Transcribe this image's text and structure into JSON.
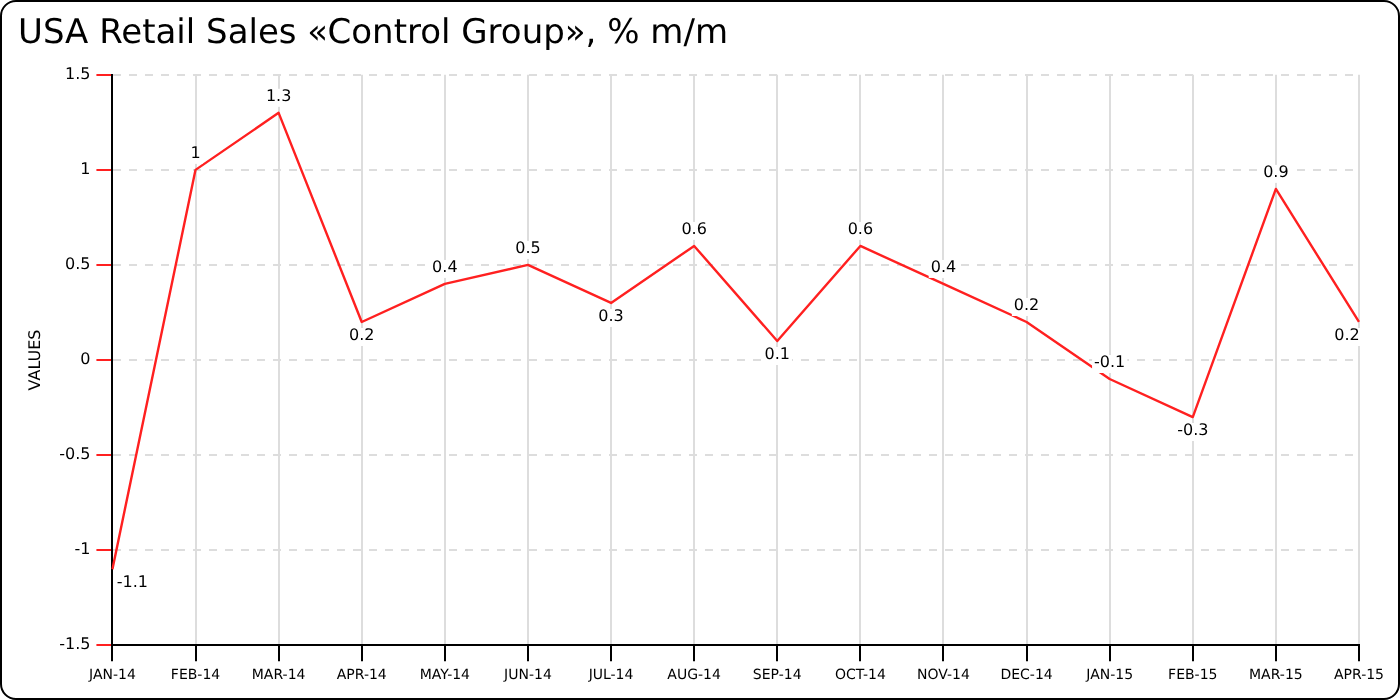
{
  "chart_data": {
    "type": "line",
    "title": "USA Retail Sales «Control Group», % m/m",
    "ylabel": "VALUES",
    "categories": [
      "JAN-14",
      "FEB-14",
      "MAR-14",
      "APR-14",
      "MAY-14",
      "JUN-14",
      "JUL-14",
      "AUG-14",
      "SEP-14",
      "OCT-14",
      "NOV-14",
      "DEC-14",
      "JAN-15",
      "FEB-15",
      "MAR-15",
      "APR-15"
    ],
    "series": [
      {
        "color": "#ff2020",
        "values": [
          -1.1,
          1,
          1.3,
          0.2,
          0.4,
          0.5,
          0.3,
          0.6,
          0.1,
          0.6,
          0.4,
          0.2,
          -0.1,
          -0.3,
          0.9,
          0.2
        ]
      }
    ],
    "ylim": [
      -1.5,
      1.5
    ],
    "yticks": [
      -1.5,
      -1,
      -0.5,
      0,
      0.5,
      1,
      1.5
    ],
    "grid": true,
    "data_labels": true,
    "line_style": "solid"
  }
}
